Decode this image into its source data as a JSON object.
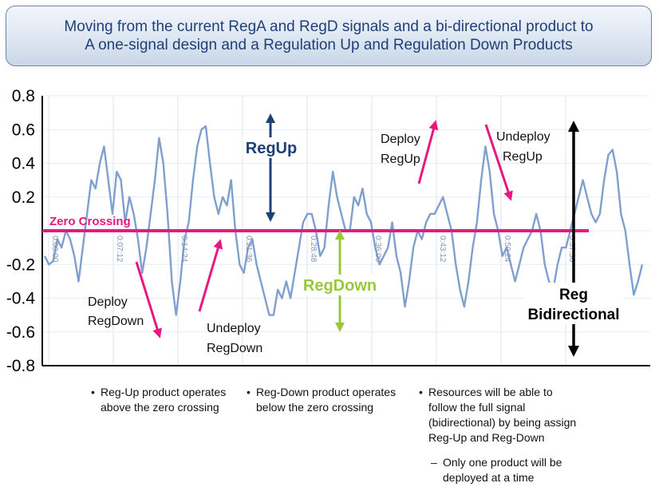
{
  "title": {
    "line1": "Moving from the current RegA and RegD signals and a bi-directional product to",
    "line2": "A one-signal design and a Regulation Up and Regulation Down Products"
  },
  "chart_data": {
    "type": "line",
    "ylim": [
      -0.8,
      0.8
    ],
    "y_ticks": [
      "0.8",
      "0.6",
      "0.4",
      "0.2",
      "-0.2",
      "-0.4",
      "-0.6",
      "-0.8"
    ],
    "x_ticks": [
      "0:00:00",
      "0:07:12",
      "0:14:24",
      "0:21:36",
      "0:28:48",
      "0:36:00",
      "0:43:12",
      "0:50:24",
      "0:57:36"
    ],
    "grid": true,
    "series": [
      {
        "values": [
          -0.15,
          -0.2,
          -0.18,
          -0.05,
          -0.1,
          0.0,
          -0.05,
          -0.15,
          -0.3,
          -0.1,
          0.1,
          0.3,
          0.25,
          0.4,
          0.5,
          0.3,
          0.1,
          0.35,
          0.3,
          0.05,
          0.2,
          0.1,
          -0.05,
          -0.25,
          -0.1,
          0.1,
          0.3,
          0.55,
          0.4,
          0.1,
          -0.3,
          -0.5,
          -0.3,
          -0.05,
          0.05,
          0.3,
          0.5,
          0.6,
          0.62,
          0.4,
          0.2,
          0.1,
          0.2,
          0.15,
          0.3,
          0.0,
          -0.2,
          -0.25,
          -0.1,
          -0.05,
          -0.2,
          -0.3,
          -0.4,
          -0.5,
          -0.5,
          -0.35,
          -0.4,
          -0.3,
          -0.4,
          -0.25,
          -0.1,
          0.05,
          0.1,
          0.1,
          0.0,
          -0.15,
          -0.1,
          0.15,
          0.35,
          0.2,
          0.1,
          0.0,
          0.0,
          0.2,
          0.15,
          0.25,
          0.1,
          0.05,
          -0.1,
          -0.2,
          -0.15,
          -0.1,
          0.05,
          -0.15,
          -0.25,
          -0.45,
          -0.3,
          -0.1,
          0.0,
          -0.05,
          0.05,
          0.1,
          0.1,
          0.15,
          0.2,
          0.1,
          0.0,
          -0.2,
          -0.35,
          -0.45,
          -0.3,
          -0.1,
          0.05,
          0.3,
          0.5,
          0.35,
          0.1,
          0.0,
          -0.15,
          -0.1,
          -0.2,
          -0.3,
          -0.2,
          -0.1,
          -0.05,
          0.0,
          0.1,
          0.0,
          -0.2,
          -0.3,
          -0.35,
          -0.2,
          -0.1,
          -0.1,
          0.0,
          0.1,
          0.2,
          0.3,
          0.2,
          0.1,
          0.05,
          0.1,
          0.3,
          0.45,
          0.48,
          0.35,
          0.1,
          0.0,
          -0.2,
          -0.38,
          -0.3,
          -0.2
        ],
        "color": "#7f9fcf"
      }
    ],
    "labels": {
      "zero_crossing": "Zero Crossing",
      "reg_up": "RegUp",
      "reg_down": "RegDown",
      "deploy_regdown": [
        "Deploy",
        "RegDown"
      ],
      "undeploy_regdown": [
        "Undeploy",
        "RegDown"
      ],
      "deploy_regup": [
        "Deploy",
        "RegUp"
      ],
      "undeploy_regup": [
        "Undeploy",
        "RegUp"
      ],
      "reg_bidirectional": [
        "Reg",
        "Bidirectional"
      ]
    },
    "colors": {
      "zero_line": "#e6197f",
      "reg_up": "#1f3f78",
      "reg_down": "#99c93a",
      "pink_arrow": "#e6197f",
      "black": "#000000"
    }
  },
  "bullets": {
    "b1": [
      "Reg-Up product operates",
      "above the zero crossing"
    ],
    "b2": [
      "Reg-Down product operates",
      "below the zero crossing"
    ],
    "b3": [
      "Resources will be able to",
      "follow the full signal",
      "(bidirectional) by being assign",
      "Reg-Up and Reg-Down"
    ],
    "sub": [
      "Only one product will be",
      "deployed at a time"
    ]
  }
}
